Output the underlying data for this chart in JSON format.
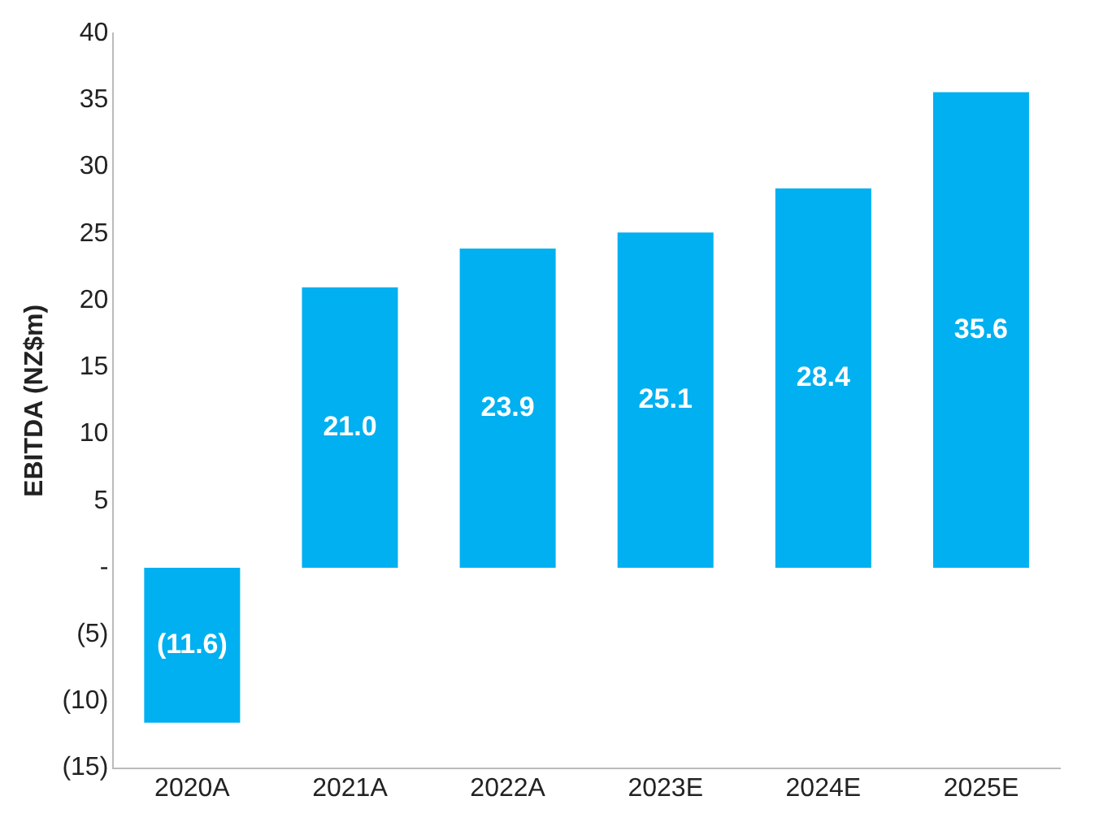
{
  "chart_data": {
    "type": "bar",
    "ylabel": "EBITDA (NZ$m)",
    "categories": [
      "2020A",
      "2021A",
      "2022A",
      "2023E",
      "2024E",
      "2025E"
    ],
    "values": [
      -11.6,
      21.0,
      23.9,
      25.1,
      28.4,
      35.6
    ],
    "value_labels": [
      "(11.6)",
      "21.0",
      "23.9",
      "25.1",
      "28.4",
      "35.6"
    ],
    "color": "#00b0f0",
    "ylim": [
      -15,
      40
    ],
    "yticks": [
      {
        "value": -15,
        "label": "(15)"
      },
      {
        "value": -10,
        "label": "(10)"
      },
      {
        "value": -5,
        "label": "(5)"
      },
      {
        "value": 0,
        "label": "-"
      },
      5,
      10,
      15,
      20,
      25,
      30,
      35,
      40
    ],
    "grid": false,
    "legend": false
  }
}
